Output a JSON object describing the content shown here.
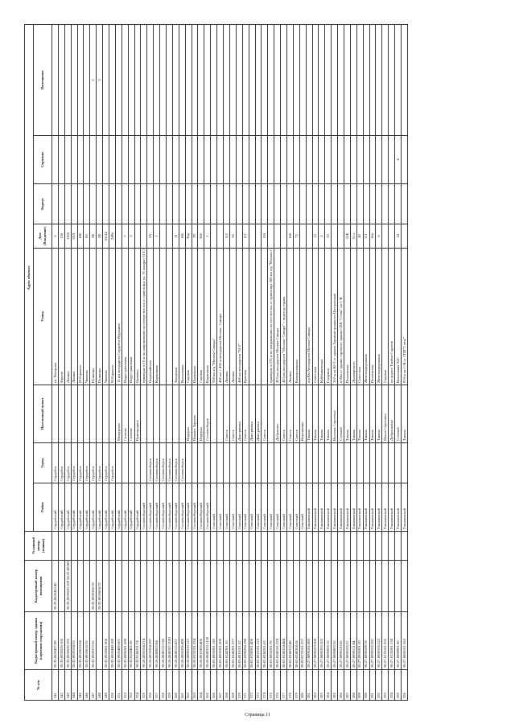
{
  "headers": {
    "num": "№ п/п",
    "building_cad": "Кадастровый номер здания (строения сооружения)",
    "room_cad": "Кадастровый номер помещения",
    "cond_num": "Условный номер (заявки)",
    "address": "Адрес объекта",
    "district": "Район",
    "city": "Город",
    "settlement": "Населенный пункт",
    "street": "Улица",
    "house": "Дом (Владение)",
    "korpus": "Корпус",
    "stroenie": "Строение",
    "pomeshenie": "Помещение"
  },
  "rows": [
    [
      "541",
      "58:32:0020427:89",
      "58:32:0020422:46",
      "",
      "Сердобский",
      "Сердобск",
      "",
      "ул. Нагорная",
      "5",
      "",
      "",
      ""
    ],
    [
      "542",
      "58:32:0020526:100",
      "",
      "",
      "Сердобский",
      "Сердобск",
      "",
      "Фрунзе",
      "126",
      "",
      "",
      ""
    ],
    [
      "543",
      "58:32:0020530:195",
      "58:32:0020530:169 58:32:0020530:179",
      "",
      "Сердобский",
      "Сердобск",
      "",
      "Ленина",
      "116б",
      "",
      "",
      ""
    ],
    [
      "544",
      "58:32:0020164:53",
      "",
      "",
      "Сердобский",
      "Сердобск",
      "",
      "Ленина",
      "63А",
      "",
      "",
      ""
    ],
    [
      "545",
      "58:32:0020610:64",
      "",
      "",
      "Сердобский",
      "Сердобск",
      "",
      "М.Горького",
      "180",
      "",
      "",
      ""
    ],
    [
      "546",
      "58:32:0020616:76",
      "",
      "",
      "Сердобский",
      "Сердобск",
      "",
      "Чапаева",
      "83",
      "",
      "",
      ""
    ],
    [
      "547",
      "58:32:0020372:52",
      "58:32:0020366:78",
      "",
      "Сердобский",
      "Сердобск",
      "",
      "Пушкина",
      "1К",
      "",
      "",
      "2"
    ],
    [
      "548",
      "",
      "58:32:0020604:79",
      "",
      "Сердобский",
      "Сердобск",
      "",
      "Пушкина",
      "1К",
      "",
      "",
      "3"
    ],
    [
      "549",
      "58:32:0020581:306",
      "",
      "",
      "Сердобский",
      "Сердобск",
      "",
      "Чапаева",
      "81/24",
      "",
      "",
      ""
    ],
    [
      "550",
      "58:32:0020449:189",
      "",
      "",
      "Сердобский",
      "Сердобск",
      "",
      "М.Горького",
      "249а",
      "",
      "",
      ""
    ],
    [
      "551",
      "58:32:0020489:601",
      "",
      "",
      "Сердобский",
      "",
      "Мещерское",
      "15 км автодороги Сердобск-Куракино",
      "",
      "",
      "",
      ""
    ],
    [
      "552",
      "58:32:0090201:590",
      "",
      "",
      "Сердобский",
      "",
      "Сазонье",
      "Индустриальная",
      "7",
      "",
      "",
      ""
    ],
    [
      "553",
      "58:32:0150401:56",
      "",
      "",
      "Сердобский",
      "",
      "Сазонье",
      "Индустриальная",
      "2",
      "",
      "",
      ""
    ],
    [
      "554",
      "58:32:0140221:74",
      "",
      "",
      "Сердобский",
      "",
      "Пригородное",
      "Орловка",
      "",
      "",
      "",
      ""
    ],
    [
      "555",
      "58:26:0020104:274",
      "",
      "",
      "Сосновоборский",
      "",
      "",
      "примерно в 10 м по направлению на северо-восток от ориентира ул. 51 квадрат 51 ГЭФ",
      "",
      "",
      "",
      ""
    ],
    [
      "556",
      "58:26:0070204:297",
      "",
      "",
      "Сосновоборский",
      "Сосновоборск",
      "",
      "Первомайская",
      "2А",
      "",
      "",
      ""
    ],
    [
      "557",
      "58:26:0040002:84",
      "",
      "",
      "Сосновоборский",
      "Сосновоборск",
      "",
      "Кирпичная",
      "1",
      "",
      "",
      ""
    ],
    [
      "558",
      "58:26:0040113:158",
      "",
      "",
      "Сосновоборский",
      "Сосновоборск",
      "",
      "",
      "",
      "",
      "",
      ""
    ],
    [
      "559",
      "58:26:0040107:1081",
      "",
      "",
      "Сосновоборский",
      "Сосновоборск",
      "",
      "",
      "",
      "",
      "",
      ""
    ],
    [
      "560",
      "58:26:0040113:471",
      "",
      "",
      "Сосновоборский",
      "Сосновоборск",
      "",
      "Заводская",
      "11",
      "",
      "",
      ""
    ],
    [
      "561",
      "58:26:0060206:490",
      "",
      "",
      "Сосновоборский",
      "Сосновоборск",
      "",
      "Вокзальная",
      "18б",
      "",
      "",
      ""
    ],
    [
      "562",
      "58:26:0090210:113",
      "",
      "",
      "Сосновоборский",
      "",
      "Индерка",
      "Садовая",
      "36д",
      "",
      "",
      ""
    ],
    [
      "563",
      "58:26:0150101:234",
      "",
      "",
      "Сосновоборский",
      "",
      "Нижнее Заруево",
      "Церковная",
      "29",
      "",
      "",
      ""
    ],
    [
      "564",
      "58:26:0010305:406",
      "",
      "",
      "Сосновоборский",
      "",
      "Индерка",
      "Садовая",
      "36б",
      "",
      "",
      ""
    ],
    [
      "565",
      "58:26:0040333:1120",
      "",
      "",
      "Сосновоборский",
      "",
      "Сосновоборск",
      "Кирпичная",
      "1",
      "",
      "",
      ""
    ],
    [
      "566",
      "58:03:0050201:118",
      "",
      "",
      "Спасский",
      "",
      "",
      "350 км а/д \"Москва-Самара\"",
      "",
      "",
      "",
      ""
    ],
    [
      "567",
      "58:03:0050201:200",
      "",
      "",
      "Спасский",
      "",
      "",
      "460 км + 450 м автодороги Москва - Самара",
      "",
      "",
      "",
      ""
    ],
    [
      "568",
      "58:02:0240301:16",
      "",
      "",
      "Спасский",
      "",
      "Спасск",
      "Ленина",
      "112",
      "",
      "",
      ""
    ],
    [
      "569",
      "58:02:0240201:377",
      "",
      "",
      "Спасский",
      "",
      "Спасск",
      "Ленина",
      "56",
      "",
      "",
      ""
    ],
    [
      "570",
      "58:03:0010101:52",
      "",
      "",
      "Спасский",
      "",
      "Дмитриевка",
      "460 км автодороги \"М-5\"",
      "",
      "",
      "",
      ""
    ],
    [
      "571",
      "58:03:0290206:198",
      "",
      "",
      "Спасский",
      "",
      "Спасск",
      "Красная",
      "117",
      "",
      "",
      ""
    ],
    [
      "572",
      "58:02:0190501:406",
      "",
      "",
      "Спасский",
      "",
      "Дмитриевка",
      "",
      "",
      "",
      "",
      ""
    ],
    [
      "573",
      "58:02:0010101:123",
      "",
      "",
      "Спасский",
      "",
      "Дмитриевка",
      "",
      "",
      "",
      "",
      ""
    ],
    [
      "574",
      "58:02:0240201:63",
      "",
      "",
      "Спасский",
      "",
      "Спасск",
      "",
      "118",
      "",
      "",
      ""
    ],
    [
      "575",
      "58:03:0050201:78",
      "",
      "",
      "Спасский",
      "",
      "",
      "примерно в 270 м по направлению на юго-восток от ориентира 500 км а/д \"Москва-Самара\"",
      "",
      "",
      "",
      ""
    ],
    [
      "576",
      "58:02:0240101:278",
      "",
      "",
      "Спасский",
      "",
      "Дубровное",
      "433 км автодороги Москва-Самара",
      "",
      "",
      "",
      ""
    ],
    [
      "577",
      "58:02:0240324:484",
      "",
      "",
      "Спасский",
      "",
      "Спасск",
      "463 км автодороги \"Москва- Самара\" + подъезд справа",
      "",
      "",
      "",
      ""
    ],
    [
      "578",
      "58:02:0240312:48",
      "",
      "",
      "Спасский",
      "",
      "Спасск",
      "Ленина",
      "106",
      "",
      "",
      ""
    ],
    [
      "579",
      "58:02:0240304:18",
      "",
      "",
      "Спасский",
      "",
      "Спасск",
      "Коммунальная",
      "72",
      "",
      "",
      ""
    ],
    [
      "580",
      "58:02:0170101:257",
      "",
      "",
      "Спасский",
      "",
      "Веденяпино",
      "",
      "",
      "",
      "",
      ""
    ],
    [
      "581",
      "58:27:0090101:685",
      "",
      "",
      "Тамалинский",
      "",
      "Тамала",
      "а/д Км Автодороги Москва-Самара",
      "",
      "",
      "",
      ""
    ],
    [
      "582",
      "58:27:0090103:360",
      "",
      "",
      "Тамалинский",
      "",
      "Тамала",
      "Советская",
      "13",
      "",
      "",
      ""
    ],
    [
      "583",
      "58:27:0080203:105",
      "",
      "",
      "Тамалинский",
      "",
      "Тамала",
      "Куйбышевская",
      "2",
      "",
      "",
      ""
    ],
    [
      "584",
      "58:27:0080603:15",
      "",
      "",
      "Тамалинский",
      "",
      "Тамала",
      "Гагарина",
      "33",
      "",
      "",
      ""
    ],
    [
      "585",
      "58:27:0080803:50",
      "",
      "",
      "Тамалинский",
      "",
      "Волхонк Сергеевка",
      "310 м на Ю-З от здания Администрации по Центральная",
      "",
      "",
      "",
      ""
    ],
    [
      "586",
      "58:27:0090110:56",
      "",
      "",
      "Тамалинский",
      "",
      "Степной",
      "в 60м от здания торгового здания СПК \"Степь\" на С-В",
      "",
      "",
      "",
      ""
    ],
    [
      "587",
      "58:27:0090105:57",
      "",
      "",
      "Тамалинский",
      "",
      "Тамала",
      "Пензенская",
      "51Б",
      "",
      "",
      ""
    ],
    [
      "588",
      "58:27:0090111:84",
      "",
      "",
      "Тамалинский",
      "",
      "Тамала",
      "Луначарского",
      "51 а",
      "",
      "",
      ""
    ],
    [
      "589",
      "58:27:0050201:10",
      "",
      "",
      "Тамалинский",
      "",
      "Тамала",
      "Советская",
      "42",
      "",
      "",
      ""
    ],
    [
      "590",
      "58:27:0090109:78",
      "",
      "",
      "Тамалинский",
      "",
      "Тамала",
      "Железнодорожная",
      "2/1",
      "",
      "",
      ""
    ],
    [
      "591",
      "58:27:0090102:281",
      "",
      "",
      "Тамалинский",
      "",
      "Тамала",
      "Пензенская",
      "16и",
      "",
      "",
      ""
    ],
    [
      "592",
      "58:27:0090105:222",
      "",
      "",
      "Тамалинский",
      "",
      "Тамала",
      "Железнодорожная",
      "6",
      "",
      "",
      ""
    ],
    [
      "593",
      "58:27:0170101:355",
      "",
      "",
      "Тамалинский",
      "",
      "Малая Сергеевка",
      "Садовая",
      "",
      "",
      "",
      ""
    ],
    [
      "594",
      "58:27:0120201:138",
      "",
      "",
      "Тамалинский",
      "",
      "Дуброкновка",
      "по дороге Тамбов-Саратов",
      "",
      "",
      "",
      ""
    ],
    [
      "595",
      "58:27:0080901:30",
      "",
      "",
      "Тамалинский",
      "",
      "Степной",
      "Вокзальная АЗС",
      "14",
      "",
      "4",
      ""
    ],
    [
      "596",
      "58:27:0080101:363",
      "",
      "",
      "Тамалинский",
      "",
      "Тамала",
      "970 м на С-В от СПК\"Степь\"",
      "",
      "",
      "",
      ""
    ]
  ],
  "footer": "Страница 11"
}
